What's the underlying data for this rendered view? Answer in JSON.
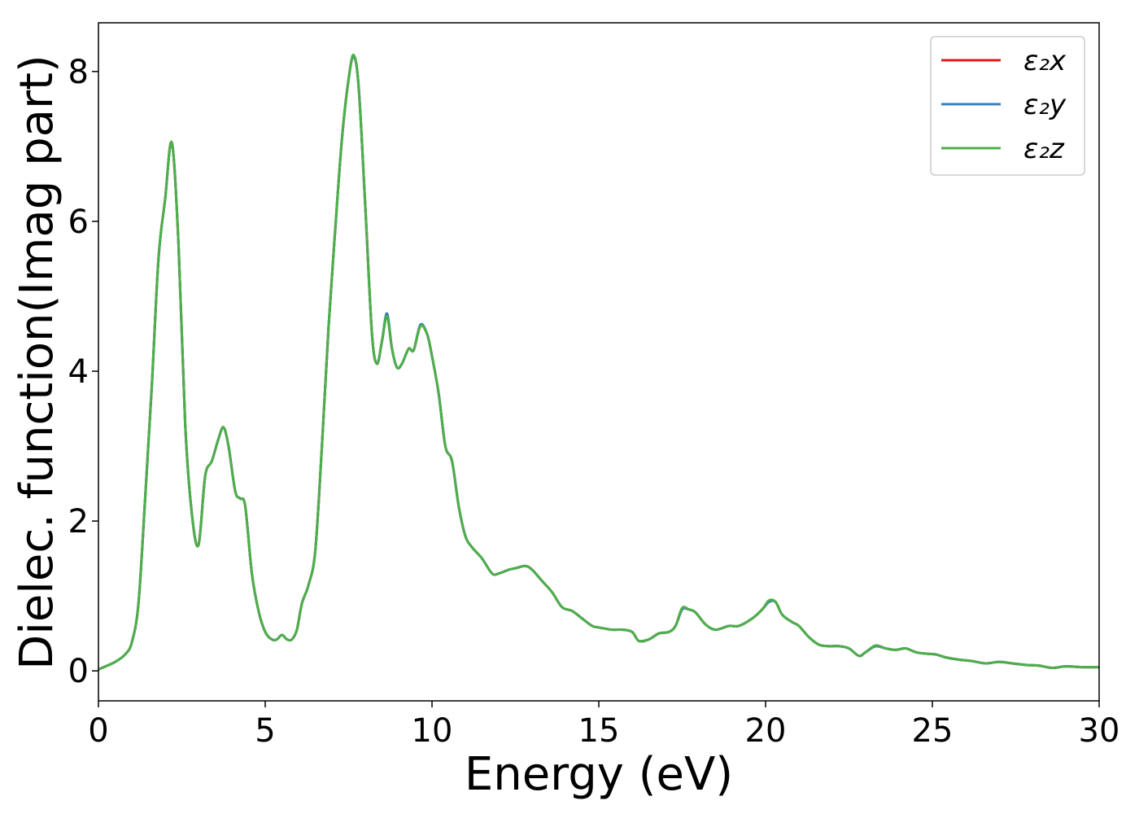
{
  "chart_data": {
    "type": "line",
    "title": "",
    "xlabel": "Energy (eV)",
    "ylabel": "Dielec. function(Imag part)",
    "xlim": [
      0,
      30
    ],
    "ylim": [
      -0.4,
      8.65
    ],
    "xticks": [
      0,
      5,
      10,
      15,
      20,
      25,
      30
    ],
    "yticks": [
      0,
      2,
      4,
      6,
      8
    ],
    "grid": false,
    "legend_position": "top-right",
    "x": [
      0,
      0.5,
      0.8,
      1.0,
      1.2,
      1.4,
      1.6,
      1.8,
      2.0,
      2.2,
      2.4,
      2.6,
      2.8,
      3.0,
      3.2,
      3.4,
      3.6,
      3.75,
      3.9,
      4.1,
      4.25,
      4.4,
      4.6,
      4.8,
      5.0,
      5.2,
      5.35,
      5.5,
      5.65,
      5.8,
      5.95,
      6.1,
      6.3,
      6.5,
      6.7,
      6.9,
      7.1,
      7.3,
      7.5,
      7.65,
      7.8,
      8.0,
      8.2,
      8.35,
      8.5,
      8.65,
      8.8,
      8.95,
      9.1,
      9.3,
      9.45,
      9.65,
      9.85,
      10.0,
      10.2,
      10.4,
      10.6,
      10.8,
      11.0,
      11.2,
      11.5,
      11.8,
      12.0,
      12.3,
      12.5,
      12.8,
      13.0,
      13.3,
      13.6,
      13.9,
      14.2,
      14.5,
      14.8,
      15.0,
      15.4,
      15.7,
      16.0,
      16.2,
      16.5,
      16.8,
      17.1,
      17.3,
      17.5,
      17.7,
      17.9,
      18.2,
      18.5,
      18.9,
      19.2,
      19.6,
      19.9,
      20.1,
      20.3,
      20.5,
      20.8,
      21.0,
      21.3,
      21.6,
      21.9,
      22.2,
      22.5,
      22.8,
      23.0,
      23.3,
      23.6,
      23.9,
      24.2,
      24.5,
      24.8,
      25.1,
      25.4,
      25.8,
      26.2,
      26.6,
      27.0,
      27.4,
      27.8,
      28.2,
      28.6,
      29.0,
      29.5,
      30.0
    ],
    "series": [
      {
        "name": "ε₂x",
        "color": "#e41a1c",
        "values": [
          0.02,
          0.12,
          0.22,
          0.38,
          0.9,
          2.3,
          3.8,
          5.5,
          6.3,
          7.05,
          5.7,
          3.3,
          2.1,
          1.68,
          2.6,
          2.8,
          3.1,
          3.25,
          3.0,
          2.4,
          2.3,
          2.2,
          1.3,
          0.8,
          0.52,
          0.42,
          0.42,
          0.48,
          0.42,
          0.42,
          0.55,
          0.9,
          1.15,
          1.6,
          3.0,
          4.6,
          5.9,
          7.1,
          7.9,
          8.2,
          7.8,
          6.2,
          4.5,
          4.1,
          4.4,
          4.75,
          4.3,
          4.05,
          4.1,
          4.3,
          4.28,
          4.6,
          4.5,
          4.2,
          3.7,
          3.0,
          2.8,
          2.2,
          1.8,
          1.65,
          1.5,
          1.3,
          1.3,
          1.35,
          1.37,
          1.4,
          1.35,
          1.2,
          1.05,
          0.85,
          0.8,
          0.7,
          0.6,
          0.58,
          0.55,
          0.55,
          0.52,
          0.4,
          0.42,
          0.5,
          0.52,
          0.6,
          0.82,
          0.82,
          0.78,
          0.62,
          0.55,
          0.6,
          0.6,
          0.7,
          0.82,
          0.92,
          0.92,
          0.75,
          0.65,
          0.6,
          0.45,
          0.35,
          0.33,
          0.33,
          0.3,
          0.2,
          0.25,
          0.33,
          0.3,
          0.28,
          0.3,
          0.25,
          0.23,
          0.22,
          0.18,
          0.15,
          0.13,
          0.1,
          0.12,
          0.1,
          0.08,
          0.07,
          0.04,
          0.06,
          0.05,
          0.05
        ]
      },
      {
        "name": "ε₂y",
        "color": "#377eb8",
        "values": [
          0.02,
          0.12,
          0.22,
          0.38,
          0.9,
          2.3,
          3.8,
          5.5,
          6.3,
          7.05,
          5.7,
          3.3,
          2.1,
          1.68,
          2.6,
          2.8,
          3.1,
          3.25,
          3.0,
          2.4,
          2.3,
          2.2,
          1.3,
          0.8,
          0.52,
          0.42,
          0.42,
          0.48,
          0.42,
          0.42,
          0.55,
          0.9,
          1.15,
          1.6,
          3.0,
          4.6,
          5.9,
          7.1,
          7.9,
          8.2,
          7.8,
          6.2,
          4.5,
          4.1,
          4.4,
          4.77,
          4.3,
          4.05,
          4.1,
          4.3,
          4.28,
          4.62,
          4.5,
          4.2,
          3.7,
          3.0,
          2.8,
          2.2,
          1.8,
          1.65,
          1.5,
          1.3,
          1.3,
          1.35,
          1.37,
          1.4,
          1.35,
          1.2,
          1.05,
          0.85,
          0.8,
          0.7,
          0.6,
          0.58,
          0.55,
          0.55,
          0.52,
          0.4,
          0.42,
          0.5,
          0.52,
          0.6,
          0.82,
          0.82,
          0.78,
          0.62,
          0.55,
          0.6,
          0.6,
          0.7,
          0.82,
          0.92,
          0.92,
          0.75,
          0.65,
          0.6,
          0.45,
          0.35,
          0.33,
          0.33,
          0.3,
          0.2,
          0.25,
          0.33,
          0.3,
          0.28,
          0.3,
          0.25,
          0.23,
          0.22,
          0.18,
          0.15,
          0.13,
          0.1,
          0.12,
          0.1,
          0.08,
          0.07,
          0.04,
          0.06,
          0.05,
          0.05
        ]
      },
      {
        "name": "ε₂z",
        "color": "#4daf4a",
        "values": [
          0.02,
          0.12,
          0.22,
          0.38,
          0.9,
          2.3,
          3.8,
          5.5,
          6.3,
          7.05,
          5.7,
          3.3,
          2.1,
          1.68,
          2.6,
          2.8,
          3.1,
          3.25,
          3.0,
          2.4,
          2.3,
          2.2,
          1.3,
          0.8,
          0.52,
          0.42,
          0.42,
          0.48,
          0.42,
          0.42,
          0.55,
          0.9,
          1.15,
          1.6,
          3.0,
          4.6,
          5.9,
          7.1,
          7.9,
          8.22,
          7.8,
          6.2,
          4.5,
          4.1,
          4.4,
          4.73,
          4.3,
          4.05,
          4.1,
          4.3,
          4.28,
          4.6,
          4.5,
          4.2,
          3.7,
          3.0,
          2.8,
          2.2,
          1.8,
          1.65,
          1.5,
          1.3,
          1.3,
          1.35,
          1.37,
          1.4,
          1.35,
          1.2,
          1.05,
          0.85,
          0.8,
          0.7,
          0.6,
          0.58,
          0.55,
          0.55,
          0.52,
          0.4,
          0.42,
          0.5,
          0.52,
          0.6,
          0.84,
          0.82,
          0.78,
          0.62,
          0.55,
          0.6,
          0.6,
          0.7,
          0.82,
          0.94,
          0.92,
          0.75,
          0.65,
          0.6,
          0.45,
          0.35,
          0.33,
          0.33,
          0.3,
          0.2,
          0.25,
          0.34,
          0.3,
          0.28,
          0.3,
          0.25,
          0.23,
          0.22,
          0.18,
          0.15,
          0.13,
          0.1,
          0.12,
          0.1,
          0.08,
          0.07,
          0.04,
          0.06,
          0.05,
          0.05
        ]
      }
    ]
  }
}
